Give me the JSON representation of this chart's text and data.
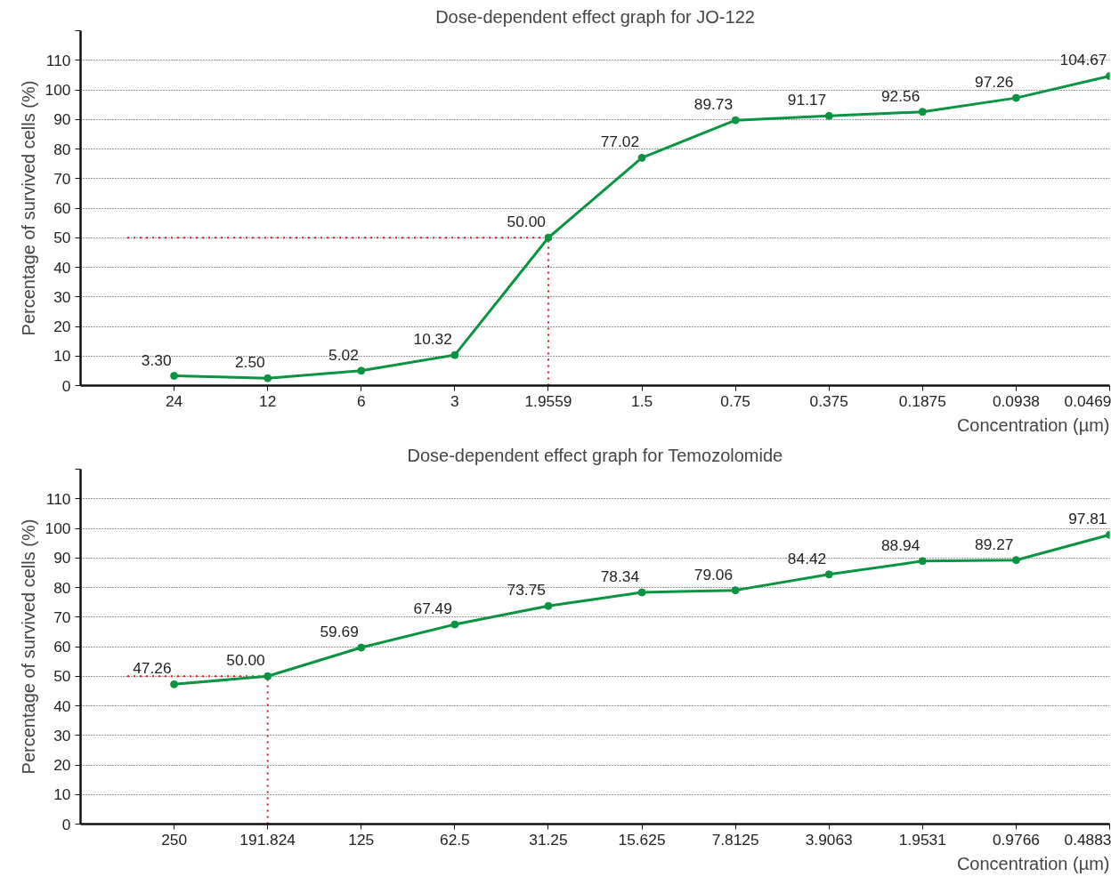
{
  "chart_data": [
    {
      "type": "line",
      "title": "Dose-dependent effect graph for JO-122",
      "xlabel": "Concentration (µm)",
      "ylabel": "Percentage of survived cells (%)",
      "categories": [
        "24",
        "12",
        "6",
        "3",
        "1.9559",
        "1.5",
        "0.75",
        "0.375",
        "0.1875",
        "0.0938",
        "0.0469"
      ],
      "series": [
        {
          "color": "#0a9441",
          "values": [
            3.3,
            2.5,
            5.02,
            10.32,
            50.0,
            77.02,
            89.73,
            91.17,
            92.56,
            97.26,
            104.67
          ],
          "value_labels": [
            "3.30",
            "2.50",
            "5.02",
            "10.32",
            "50.00",
            "77.02",
            "89.73",
            "91.17",
            "92.56",
            "97.26",
            "104.67"
          ]
        }
      ],
      "ylim": [
        0,
        120
      ],
      "yticks": [
        0,
        10,
        20,
        30,
        40,
        50,
        60,
        70,
        80,
        90,
        100,
        110,
        {
          "value": 120,
          "label": null
        }
      ],
      "grid": "y",
      "marker": "circle",
      "line_style": "solid",
      "ref_lines": [
        {
          "axis": "y",
          "value": 50,
          "color": "#e8101c",
          "line_style": "dotted"
        },
        {
          "axis": "x",
          "value": "1.9559",
          "color": "#e8101c",
          "line_style": "dotted"
        }
      ]
    },
    {
      "type": "line",
      "title": "Dose-dependent effect graph for Temozolomide",
      "xlabel": "Concentration (µm)",
      "ylabel": "Percentage of survived cells (%)",
      "categories": [
        "250",
        "191.824",
        "125",
        "62.5",
        "31.25",
        "15.625",
        "7.8125",
        "3.9063",
        "1.9531",
        "0.9766",
        "0.4883"
      ],
      "series": [
        {
          "color": "#0a9441",
          "values": [
            47.26,
            50.0,
            59.69,
            67.49,
            73.75,
            78.34,
            79.06,
            84.42,
            88.94,
            89.27,
            97.81
          ],
          "value_labels": [
            "47.26",
            "50.00",
            "59.69",
            "67.49",
            "73.75",
            "78.34",
            "79.06",
            "84.42",
            "88.94",
            "89.27",
            "97.81"
          ]
        }
      ],
      "ylim": [
        0,
        120
      ],
      "yticks": [
        0,
        10,
        20,
        30,
        40,
        50,
        60,
        70,
        80,
        90,
        100,
        110,
        {
          "value": 120,
          "label": null
        }
      ],
      "grid": "y",
      "marker": "circle",
      "line_style": "solid",
      "ref_lines": [
        {
          "axis": "y",
          "value": 50,
          "color": "#e8101c",
          "line_style": "dotted"
        },
        {
          "axis": "x",
          "value": "191.824",
          "color": "#e8101c",
          "line_style": "dotted"
        }
      ]
    }
  ]
}
